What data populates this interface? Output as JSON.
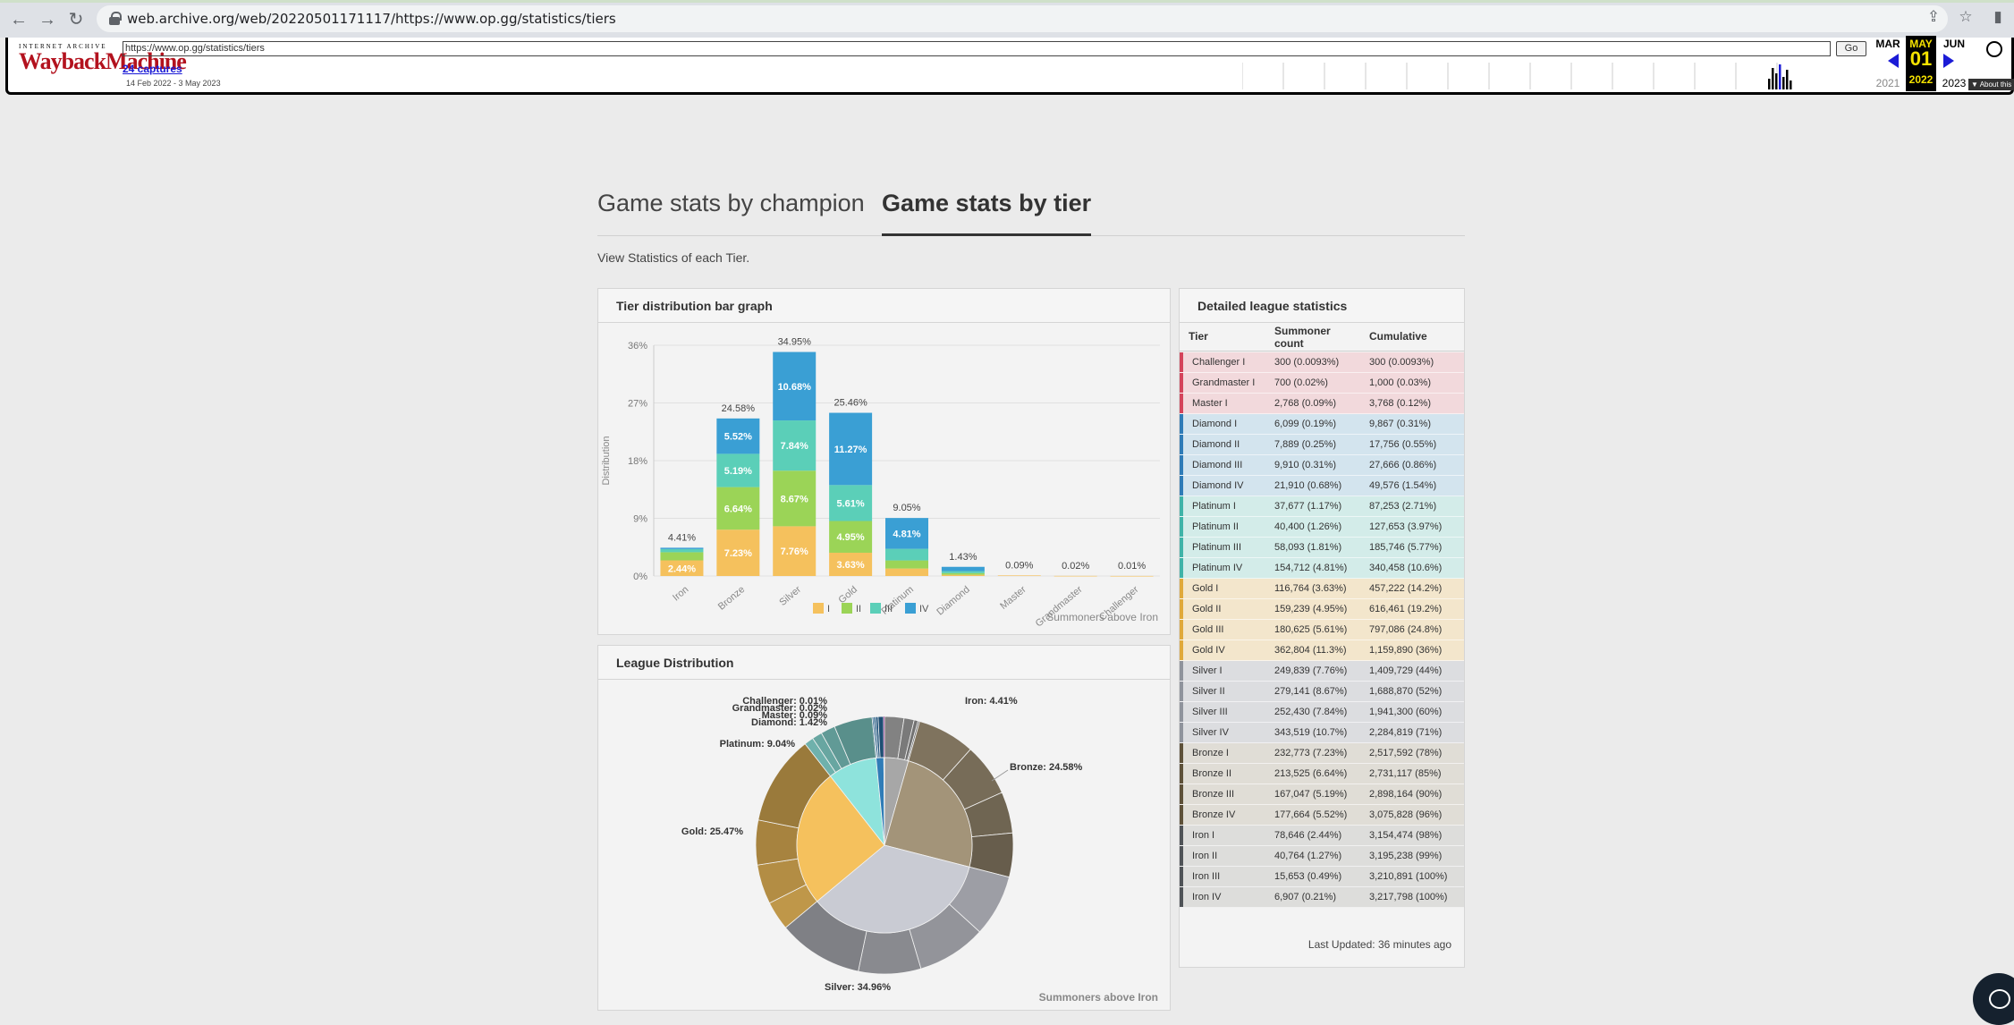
{
  "browser": {
    "url": "web.archive.org/web/20220501171117/https://www.op.gg/statistics/tiers",
    "icons": [
      "back-icon",
      "forward-icon",
      "reload-icon",
      "lock-icon",
      "share-icon",
      "star-icon",
      "sidebar-icon"
    ]
  },
  "wayback": {
    "logo_top": "INTERNET ARCHIVE",
    "logo_main": "WaybackMachine",
    "url_value": "https://www.op.gg/statistics/tiers",
    "go_label": "Go",
    "captures_label": "24 captures",
    "date_range": "14 Feb 2022 - 3 May 2023",
    "prev_month": "MAR",
    "prev_year": "2021",
    "cur_month": "MAY",
    "cur_day": "01",
    "cur_year": "2022",
    "next_month": "JUN",
    "next_year": "2023",
    "about_label": "▼ About this"
  },
  "page": {
    "tab_champion": "Game stats by champion",
    "tab_tier": "Game stats by tier",
    "subtitle": "View Statistics of each Tier."
  },
  "bar_panel": {
    "title": "Tier distribution bar graph",
    "footnote": "Summoners above Iron"
  },
  "pie_panel": {
    "title": "League Distribution",
    "footnote": "Summoners above Iron"
  },
  "colors": {
    "I": "#f5c15d",
    "II": "#9bd457",
    "III": "#5bcfb8",
    "IV": "#3a9fd4"
  },
  "chart_data": [
    {
      "type": "bar",
      "title": "Tier distribution bar graph",
      "ylabel": "Distribution",
      "ylim": [
        0,
        36
      ],
      "yticks": [
        "0%",
        "9%",
        "18%",
        "27%",
        "36%"
      ],
      "categories": [
        "Iron",
        "Bronze",
        "Silver",
        "Gold",
        "Platinum",
        "Diamond",
        "Master",
        "Grandmaster",
        "Challenger"
      ],
      "totals": [
        "4.41%",
        "24.58%",
        "34.95%",
        "25.46%",
        "9.05%",
        "1.43%",
        "0.09%",
        "0.02%",
        "0.01%"
      ],
      "series": [
        {
          "name": "I",
          "values": [
            2.44,
            7.23,
            7.76,
            3.63,
            1.17,
            0.19,
            0.09,
            0.02,
            0.0093
          ],
          "labels": [
            "2.44%",
            "7.23%",
            "7.76%",
            "3.63%",
            "",
            "",
            "",
            "",
            ""
          ]
        },
        {
          "name": "II",
          "values": [
            1.27,
            6.64,
            8.67,
            4.95,
            1.26,
            0.25,
            0,
            0,
            0
          ],
          "labels": [
            "",
            "6.64%",
            "8.67%",
            "4.95%",
            "",
            "",
            "",
            "",
            ""
          ]
        },
        {
          "name": "III",
          "values": [
            0.49,
            5.19,
            7.84,
            5.61,
            1.81,
            0.31,
            0,
            0,
            0
          ],
          "labels": [
            "",
            "5.19%",
            "7.84%",
            "5.61%",
            "",
            "",
            "",
            "",
            ""
          ]
        },
        {
          "name": "IV",
          "values": [
            0.21,
            5.52,
            10.68,
            11.27,
            4.81,
            0.68,
            0,
            0,
            0
          ],
          "labels": [
            "",
            "5.52%",
            "10.68%",
            "11.27%",
            "4.81%",
            "",
            "",
            "",
            ""
          ]
        }
      ],
      "legend": [
        "I",
        "II",
        "III",
        "IV"
      ],
      "legend_position": "bottom"
    },
    {
      "type": "pie",
      "title": "League Distribution",
      "slices": [
        {
          "label": "Iron: 4.41%",
          "value": 4.41,
          "color": "#a7a7a7"
        },
        {
          "label": "Bronze: 24.58%",
          "value": 24.58,
          "color": "#a39479"
        },
        {
          "label": "Silver: 34.96%",
          "value": 34.96,
          "color": "#c9cbd3"
        },
        {
          "label": "Gold: 25.47%",
          "value": 25.47,
          "color": "#f5c15d"
        },
        {
          "label": "Platinum: 9.04%",
          "value": 9.04,
          "color": "#8ee3dc"
        },
        {
          "label": "Diamond: 1.42%",
          "value": 1.42,
          "color": "#2f7cb7"
        },
        {
          "label": "Master: 0.09%",
          "value": 0.09,
          "color": "#b15bd0"
        },
        {
          "label": "Grandmaster: 0.02%",
          "value": 0.02,
          "color": "#c94b55"
        },
        {
          "label": "Challenger: 0.01%",
          "value": 0.01,
          "color": "#e2b23c"
        }
      ],
      "outer_colors": [
        "#7b6f5a",
        "#cfa13b",
        "#a8abb6",
        "#6cc7bf",
        "#888888"
      ]
    }
  ],
  "table": {
    "title": "Detailed league statistics",
    "headers": [
      "Tier",
      "Summoner count",
      "Cumulative"
    ],
    "rows": [
      {
        "tier": "Challenger I",
        "count": "300  (0.0093%)",
        "cum": "300  (0.0093%)",
        "bg": "#f2d9dc",
        "bar": "#d4445b"
      },
      {
        "tier": "Grandmaster I",
        "count": "700  (0.02%)",
        "cum": "1,000  (0.03%)",
        "bg": "#f2d9dc",
        "bar": "#d4445b"
      },
      {
        "tier": "Master I",
        "count": "2,768  (0.09%)",
        "cum": "3,768  (0.12%)",
        "bg": "#f2d9dc",
        "bar": "#d4445b"
      },
      {
        "tier": "Diamond I",
        "count": "6,099  (0.19%)",
        "cum": "9,867  (0.31%)",
        "bg": "#d3e4ee",
        "bar": "#2f7cb7"
      },
      {
        "tier": "Diamond II",
        "count": "7,889  (0.25%)",
        "cum": "17,756  (0.55%)",
        "bg": "#d3e4ee",
        "bar": "#2f7cb7"
      },
      {
        "tier": "Diamond III",
        "count": "9,910  (0.31%)",
        "cum": "27,666  (0.86%)",
        "bg": "#d3e4ee",
        "bar": "#2f7cb7"
      },
      {
        "tier": "Diamond IV",
        "count": "21,910  (0.68%)",
        "cum": "49,576  (1.54%)",
        "bg": "#d3e4ee",
        "bar": "#2f7cb7"
      },
      {
        "tier": "Platinum I",
        "count": "37,677  (1.17%)",
        "cum": "87,253  (2.71%)",
        "bg": "#d3ece9",
        "bar": "#3fb3a8"
      },
      {
        "tier": "Platinum II",
        "count": "40,400  (1.26%)",
        "cum": "127,653  (3.97%)",
        "bg": "#d3ece9",
        "bar": "#3fb3a8"
      },
      {
        "tier": "Platinum III",
        "count": "58,093  (1.81%)",
        "cum": "185,746  (5.77%)",
        "bg": "#d3ece9",
        "bar": "#3fb3a8"
      },
      {
        "tier": "Platinum IV",
        "count": "154,712  (4.81%)",
        "cum": "340,458  (10.6%)",
        "bg": "#d3ece9",
        "bar": "#3fb3a8"
      },
      {
        "tier": "Gold I",
        "count": "116,764  (3.63%)",
        "cum": "457,222  (14.2%)",
        "bg": "#f3e6cc",
        "bar": "#e0a93a"
      },
      {
        "tier": "Gold II",
        "count": "159,239  (4.95%)",
        "cum": "616,461  (19.2%)",
        "bg": "#f3e6cc",
        "bar": "#e0a93a"
      },
      {
        "tier": "Gold III",
        "count": "180,625  (5.61%)",
        "cum": "797,086  (24.8%)",
        "bg": "#f3e6cc",
        "bar": "#e0a93a"
      },
      {
        "tier": "Gold IV",
        "count": "362,804  (11.3%)",
        "cum": "1,159,890  (36%)",
        "bg": "#f3e6cc",
        "bar": "#e0a93a"
      },
      {
        "tier": "Silver I",
        "count": "249,839  (7.76%)",
        "cum": "1,409,729  (44%)",
        "bg": "#dcdde0",
        "bar": "#8f939c"
      },
      {
        "tier": "Silver II",
        "count": "279,141  (8.67%)",
        "cum": "1,688,870  (52%)",
        "bg": "#dcdde0",
        "bar": "#8f939c"
      },
      {
        "tier": "Silver III",
        "count": "252,430  (7.84%)",
        "cum": "1,941,300  (60%)",
        "bg": "#dcdde0",
        "bar": "#8f939c"
      },
      {
        "tier": "Silver IV",
        "count": "343,519  (10.7%)",
        "cum": "2,284,819  (71%)",
        "bg": "#dcdde0",
        "bar": "#8f939c"
      },
      {
        "tier": "Bronze I",
        "count": "232,773  (7.23%)",
        "cum": "2,517,592  (78%)",
        "bg": "#e0ddd6",
        "bar": "#5e5139"
      },
      {
        "tier": "Bronze II",
        "count": "213,525  (6.64%)",
        "cum": "2,731,117  (85%)",
        "bg": "#e0ddd6",
        "bar": "#5e5139"
      },
      {
        "tier": "Bronze III",
        "count": "167,047  (5.19%)",
        "cum": "2,898,164  (90%)",
        "bg": "#e0ddd6",
        "bar": "#5e5139"
      },
      {
        "tier": "Bronze IV",
        "count": "177,664  (5.52%)",
        "cum": "3,075,828  (96%)",
        "bg": "#e0ddd6",
        "bar": "#5e5139"
      },
      {
        "tier": "Iron I",
        "count": "78,646  (2.44%)",
        "cum": "3,154,474  (98%)",
        "bg": "#dddddb",
        "bar": "#4f5357"
      },
      {
        "tier": "Iron II",
        "count": "40,764  (1.27%)",
        "cum": "3,195,238  (99%)",
        "bg": "#dddddb",
        "bar": "#4f5357"
      },
      {
        "tier": "Iron III",
        "count": "15,653  (0.49%)",
        "cum": "3,210,891  (100%)",
        "bg": "#dddddb",
        "bar": "#4f5357"
      },
      {
        "tier": "Iron IV",
        "count": "6,907  (0.21%)",
        "cum": "3,217,798  (100%)",
        "bg": "#dddddb",
        "bar": "#4f5357"
      }
    ],
    "updated": "Last Updated: 36 minutes ago"
  }
}
